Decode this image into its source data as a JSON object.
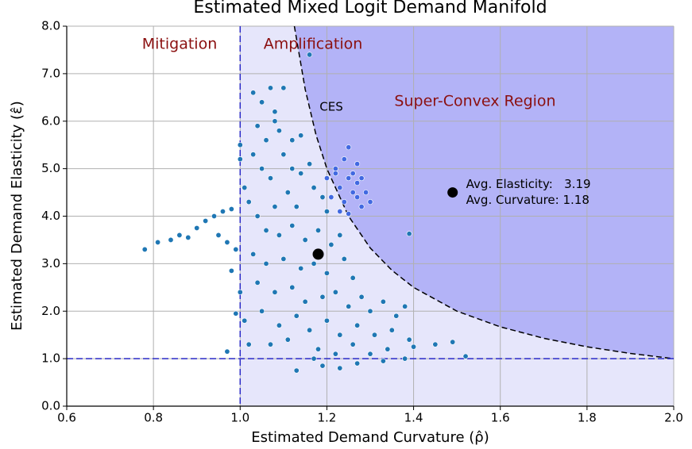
{
  "chart_data": {
    "type": "scatter",
    "title": "Estimated Mixed Logit Demand Manifold",
    "xlabel": "Estimated Demand Curvature (ρ̂)",
    "ylabel": "Estimated Demand Elasticity (ε̂)",
    "xlim": [
      0.6,
      2.0
    ],
    "ylim": [
      0.0,
      8.0
    ],
    "xticks": [
      0.6,
      0.8,
      {
        "value": 1.0,
        "label": "1.0"
      },
      1.2,
      1.4,
      1.6,
      1.8,
      {
        "value": 2.0,
        "label": "2.0"
      }
    ],
    "yticks": [
      {
        "value": 0,
        "label": "0.0"
      },
      {
        "value": 1,
        "label": "1.0"
      },
      {
        "value": 2,
        "label": "2.0"
      },
      {
        "value": 3,
        "label": "3.0"
      },
      {
        "value": 4,
        "label": "4.0"
      },
      {
        "value": 5,
        "label": "5.0"
      },
      {
        "value": 6,
        "label": "6.0"
      },
      {
        "value": 7,
        "label": "7.0"
      },
      {
        "value": 8,
        "label": "8.0"
      }
    ],
    "grid": true,
    "thresholds": {
      "x": 1.0,
      "y": 1.0,
      "color": "#2b2bc8"
    },
    "region_colors": {
      "amplification": "#e6e6fb",
      "super_convex": "#b3b3f7"
    },
    "ces_curve": {
      "x": [
        1.125,
        1.15,
        1.175,
        1.2,
        1.25,
        1.3,
        1.35,
        1.4,
        1.5,
        1.6,
        1.7,
        1.8,
        1.9,
        2.0
      ],
      "y": [
        8.0,
        6.67,
        5.71,
        5.0,
        4.0,
        3.33,
        2.86,
        2.5,
        2.0,
        1.67,
        1.43,
        1.25,
        1.11,
        1.0
      ]
    },
    "region_labels": {
      "mitigation": "Mitigation",
      "amplification": "Amplification",
      "super_convex": "Super-Convex Region",
      "ces": "CES"
    },
    "series": [
      {
        "color": "#1f77b4",
        "x": [
          0.78,
          0.81,
          0.84,
          0.86,
          0.88,
          0.9,
          0.92,
          0.94,
          0.96,
          0.98,
          0.97,
          0.95,
          0.99,
          0.98,
          0.99,
          0.97,
          1.0,
          1.0,
          1.01,
          1.0,
          1.01,
          1.02,
          1.03,
          1.05,
          1.07,
          1.08,
          1.04,
          1.06,
          1.09,
          1.1,
          1.12,
          1.14,
          1.16,
          1.05,
          1.03,
          1.07,
          1.02,
          1.04,
          1.08,
          1.11,
          1.13,
          1.17,
          1.19,
          1.2,
          1.06,
          1.09,
          1.12,
          1.15,
          1.18,
          1.21,
          1.23,
          1.03,
          1.06,
          1.1,
          1.14,
          1.17,
          1.2,
          1.24,
          1.26,
          1.04,
          1.08,
          1.12,
          1.15,
          1.19,
          1.22,
          1.25,
          1.28,
          1.3,
          1.33,
          1.36,
          1.38,
          1.05,
          1.09,
          1.13,
          1.16,
          1.2,
          1.23,
          1.27,
          1.31,
          1.35,
          1.39,
          1.07,
          1.11,
          1.18,
          1.22,
          1.26,
          1.3,
          1.34,
          1.4,
          1.19,
          1.23,
          1.27,
          1.13,
          1.17,
          1.33,
          1.38,
          1.45,
          1.49,
          1.52,
          1.39,
          1.16,
          1.1,
          1.08,
          1.12,
          1.14
        ],
        "y": [
          3.3,
          3.45,
          3.5,
          3.6,
          3.55,
          3.75,
          3.9,
          4.0,
          4.1,
          4.15,
          3.45,
          3.6,
          3.3,
          2.85,
          1.95,
          1.15,
          5.2,
          5.5,
          4.6,
          2.4,
          1.8,
          1.3,
          6.6,
          6.4,
          6.7,
          6.2,
          5.9,
          5.6,
          5.8,
          5.3,
          5.0,
          4.9,
          5.1,
          5.0,
          5.3,
          4.8,
          4.3,
          4.0,
          4.2,
          4.5,
          4.2,
          4.6,
          4.4,
          4.1,
          3.7,
          3.6,
          3.8,
          3.5,
          3.7,
          3.4,
          3.6,
          3.2,
          3.0,
          3.1,
          2.9,
          3.0,
          2.8,
          3.1,
          2.7,
          2.6,
          2.4,
          2.5,
          2.2,
          2.3,
          2.4,
          2.1,
          2.3,
          2.0,
          2.2,
          1.9,
          2.1,
          2.0,
          1.7,
          1.9,
          1.6,
          1.8,
          1.5,
          1.7,
          1.5,
          1.6,
          1.4,
          1.3,
          1.4,
          1.2,
          1.1,
          1.3,
          1.1,
          1.2,
          1.25,
          0.85,
          0.8,
          0.9,
          0.75,
          1.0,
          0.95,
          1.0,
          1.3,
          1.35,
          1.05,
          3.63,
          7.4,
          6.7,
          6.0,
          5.6,
          5.7
        ]
      },
      {
        "color": "#4169e1",
        "x": [
          1.2,
          1.22,
          1.24,
          1.25,
          1.27,
          1.23,
          1.25,
          1.27,
          1.29,
          1.21,
          1.24,
          1.26,
          1.28,
          1.22,
          1.26,
          1.28,
          1.23,
          1.25,
          1.3,
          1.27
        ],
        "y": [
          4.8,
          5.0,
          5.2,
          5.45,
          5.1,
          4.6,
          4.8,
          4.7,
          4.5,
          4.4,
          4.3,
          4.5,
          4.2,
          4.9,
          4.9,
          4.8,
          4.1,
          4.05,
          4.3,
          4.4
        ]
      }
    ],
    "mean_point": {
      "x": 1.18,
      "y": 3.2
    },
    "annotation_marker": {
      "x": 1.49,
      "y": 4.5
    },
    "annotation_lines": [
      "Avg. Elasticity:   3.19",
      "Avg. Curvature: 1.18"
    ]
  }
}
